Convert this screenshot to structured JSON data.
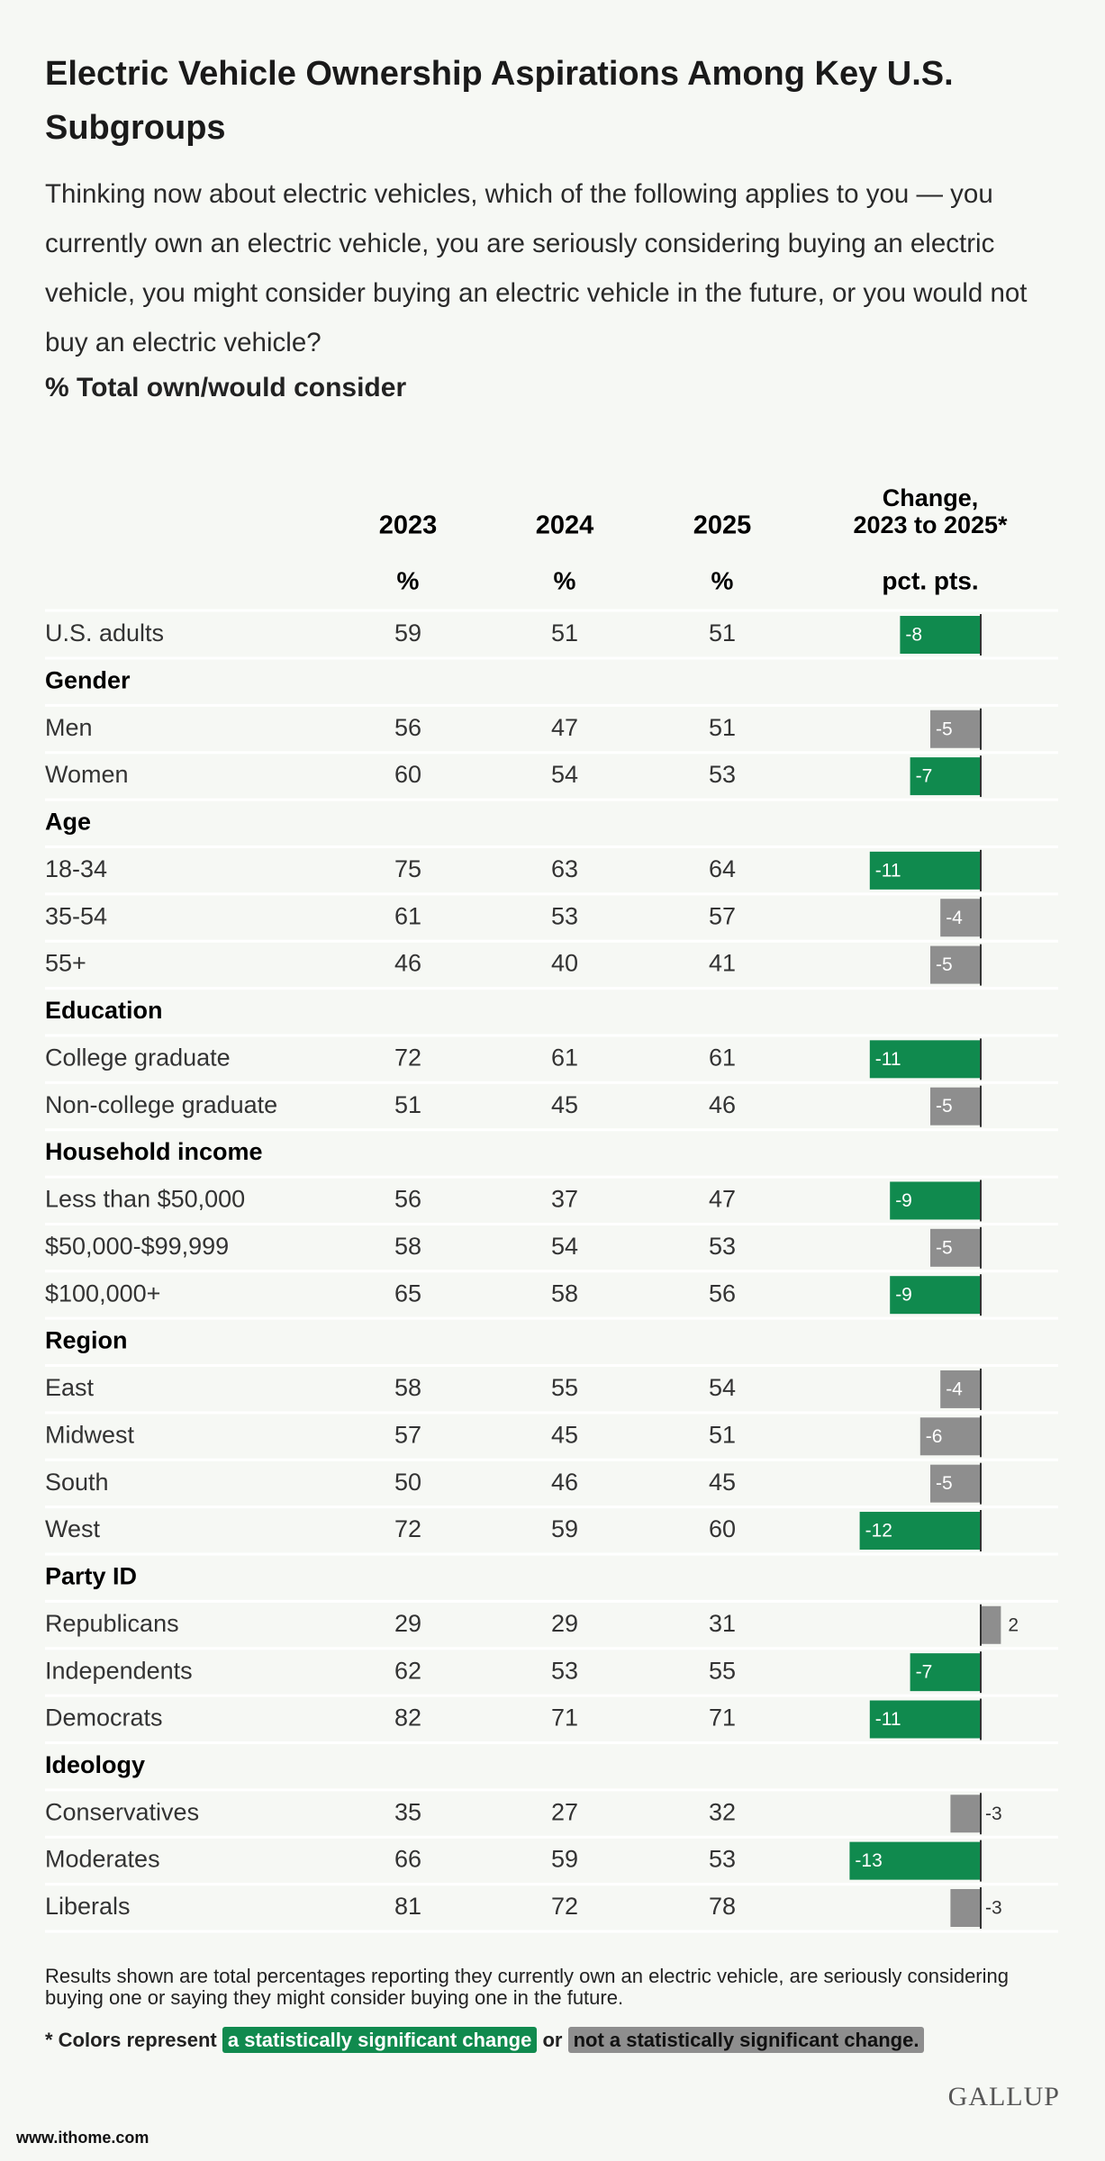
{
  "title": "Electric Vehicle Ownership Aspirations Among Key U.S. Subgroups",
  "question": "Thinking now about electric vehicles, which of the following applies to you — you currently own an electric vehicle, you are seriously considering buying an electric vehicle, you might consider buying an electric vehicle in the future, or you would not buy an electric vehicle?",
  "measure": "% Total own/would consider",
  "table": {
    "columns": [
      "2023",
      "2024",
      "2025"
    ],
    "change_header": [
      "Change,",
      "2023 to 2025*"
    ],
    "units": [
      "%",
      "%",
      "%",
      "pct. pts."
    ],
    "significant_color": "#108a4e",
    "not_significant_color": "#8e8e8e",
    "rows": [
      {
        "label": "U.S. adults",
        "values": [
          59,
          51,
          51
        ],
        "change": -8,
        "significant": true
      },
      {
        "group": "Gender"
      },
      {
        "label": "Men",
        "values": [
          56,
          47,
          51
        ],
        "change": -5,
        "significant": false
      },
      {
        "label": "Women",
        "values": [
          60,
          54,
          53
        ],
        "change": -7,
        "significant": true
      },
      {
        "group": "Age"
      },
      {
        "label": "18-34",
        "values": [
          75,
          63,
          64
        ],
        "change": -11,
        "significant": true
      },
      {
        "label": "35-54",
        "values": [
          61,
          53,
          57
        ],
        "change": -4,
        "significant": false
      },
      {
        "label": "55+",
        "values": [
          46,
          40,
          41
        ],
        "change": -5,
        "significant": false
      },
      {
        "group": "Education"
      },
      {
        "label": "College graduate",
        "values": [
          72,
          61,
          61
        ],
        "change": -11,
        "significant": true
      },
      {
        "label": "Non-college graduate",
        "values": [
          51,
          45,
          46
        ],
        "change": -5,
        "significant": false
      },
      {
        "group": "Household income"
      },
      {
        "label": "Less than $50,000",
        "values": [
          56,
          37,
          47
        ],
        "change": -9,
        "significant": true
      },
      {
        "label": "$50,000-$99,999",
        "values": [
          58,
          54,
          53
        ],
        "change": -5,
        "significant": false
      },
      {
        "label": "$100,000+",
        "values": [
          65,
          58,
          56
        ],
        "change": -9,
        "significant": true
      },
      {
        "group": "Region"
      },
      {
        "label": "East",
        "values": [
          58,
          55,
          54
        ],
        "change": -4,
        "significant": false
      },
      {
        "label": "Midwest",
        "values": [
          57,
          45,
          51
        ],
        "change": -6,
        "significant": false
      },
      {
        "label": "South",
        "values": [
          50,
          46,
          45
        ],
        "change": -5,
        "significant": false
      },
      {
        "label": "West",
        "values": [
          72,
          59,
          60
        ],
        "change": -12,
        "significant": true
      },
      {
        "group": "Party ID"
      },
      {
        "label": "Republicans",
        "values": [
          29,
          29,
          31
        ],
        "change": 2,
        "significant": false
      },
      {
        "label": "Independents",
        "values": [
          62,
          53,
          55
        ],
        "change": -7,
        "significant": true
      },
      {
        "label": "Democrats",
        "values": [
          82,
          71,
          71
        ],
        "change": -11,
        "significant": true
      },
      {
        "group": "Ideology"
      },
      {
        "label": "Conservatives",
        "values": [
          35,
          27,
          32
        ],
        "change": -3,
        "significant": false
      },
      {
        "label": "Moderates",
        "values": [
          66,
          59,
          53
        ],
        "change": -13,
        "significant": true
      },
      {
        "label": "Liberals",
        "values": [
          81,
          72,
          78
        ],
        "change": -3,
        "significant": false
      }
    ]
  },
  "footnote": "Results shown are total percentages reporting they currently own an electric vehicle, are seriously considering buying one or saying they might consider buying one in the future.",
  "legend": {
    "prefix": "* Colors represent",
    "significant": "a statistically significant change",
    "joiner": "or",
    "not_significant": "not a statistically significant change."
  },
  "brand": "GALLUP",
  "watermark": "www.ithome.com"
}
